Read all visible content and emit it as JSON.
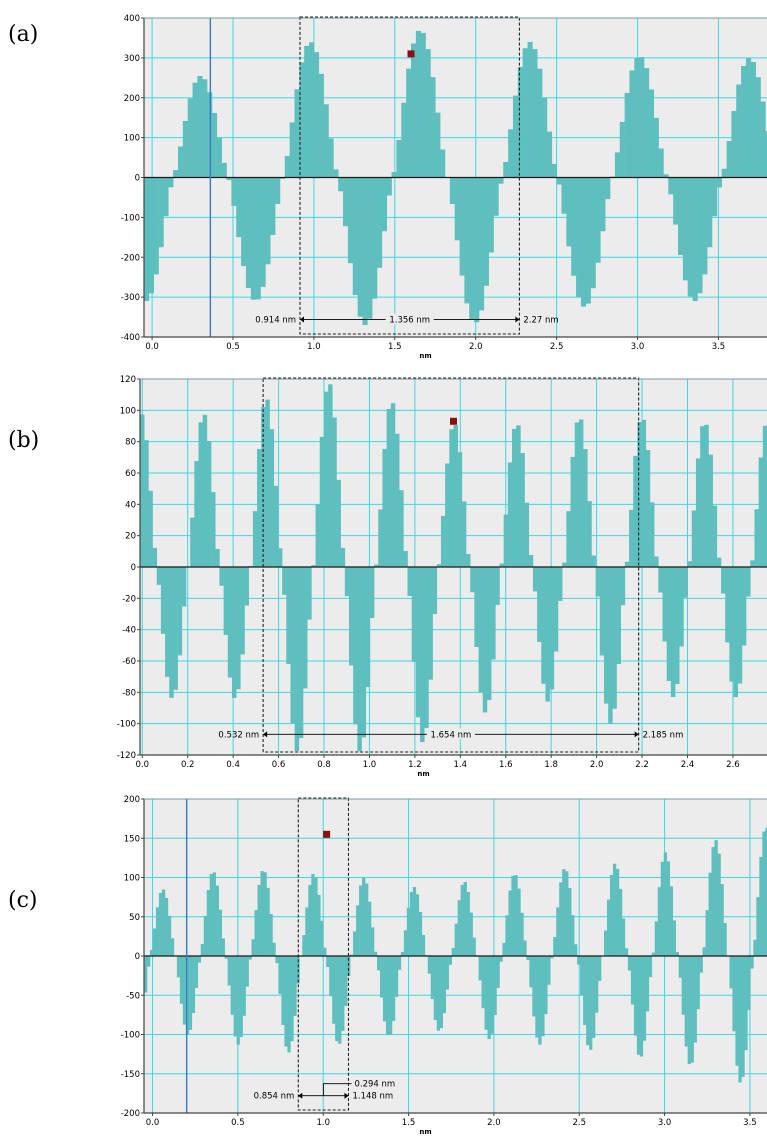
{
  "chart_data": [
    {
      "panel_label": "(a)",
      "type": "bar",
      "xlabel": "nm",
      "xlim": [
        -0.05,
        3.8
      ],
      "ylim": [
        -400,
        400
      ],
      "xticks": [
        "0.0",
        "0.5",
        "1.0",
        "1.5",
        "2.0",
        "2.5",
        "3.0",
        "3.5"
      ],
      "xtick_values": [
        0,
        0.5,
        1,
        1.5,
        2,
        2.5,
        3,
        3.5
      ],
      "yticks": [
        "400",
        "300",
        "200",
        "100",
        "0",
        "-100",
        "-200",
        "-300",
        "-400"
      ],
      "ytick_values": [
        400,
        300,
        200,
        100,
        0,
        -100,
        -200,
        -300,
        -400
      ],
      "grid": true,
      "wave": {
        "period": 0.678,
        "peak_x": 0.3,
        "ascending_zero_x": 0.13,
        "bin_width": 0.03,
        "peaks": [
          255,
          340,
          370,
          340,
          305,
          300,
          320
        ],
        "troughs": [
          -310,
          -370,
          -365,
          -325,
          -310
        ]
      },
      "cursor_x": 0.36,
      "marker": {
        "x": 1.6,
        "y": 310
      },
      "selection": [
        0.914,
        2.27
      ],
      "measurements": [
        "0.914 nm",
        "1.356 nm",
        "2.27 nm"
      ]
    },
    {
      "panel_label": "(b)",
      "type": "bar",
      "xlabel": "nm",
      "xlim": [
        -0.01,
        2.75
      ],
      "ylim": [
        -120,
        120
      ],
      "xticks": [
        "0.0",
        "0.2",
        "0.4",
        "0.6",
        "0.8",
        "1.0",
        "1.2",
        "1.4",
        "1.6",
        "1.8",
        "2.0",
        "2.2",
        "2.4",
        "2.6"
      ],
      "xtick_values": [
        0,
        0.2,
        0.4,
        0.6,
        0.8,
        1.0,
        1.2,
        1.4,
        1.6,
        1.8,
        2.0,
        2.2,
        2.4,
        2.6
      ],
      "yticks": [
        "120",
        "100",
        "80",
        "60",
        "40",
        "20",
        "0",
        "-20",
        "-40",
        "-60",
        "-80",
        "-100",
        "-120"
      ],
      "ytick_values": [
        120,
        100,
        80,
        60,
        40,
        20,
        0,
        -20,
        -40,
        -60,
        -80,
        -100,
        -120
      ],
      "grid": true,
      "wave": {
        "period": 0.2756,
        "peak_x": 0.27,
        "ascending_zero_x": 0.18,
        "bin_width": 0.0184,
        "peaks": [
          98,
          108,
          118,
          106,
          92,
          92,
          96,
          96,
          93
        ],
        "troughs": [
          -84,
          -118,
          -118,
          -112,
          -93,
          -86,
          -100,
          -83,
          -83
        ]
      },
      "marker": {
        "x": 1.37,
        "y": 93
      },
      "selection": [
        0.532,
        2.185
      ],
      "measurements": [
        "0.532 nm",
        "1.654 nm",
        "2.185 nm"
      ]
    },
    {
      "panel_label": "(c)",
      "type": "bar",
      "xlabel": "nm",
      "xlim": [
        -0.05,
        3.6
      ],
      "ylim": [
        -200,
        200
      ],
      "xticks": [
        "0.0",
        "0.5",
        "1.0",
        "1.5",
        "2.0",
        "2.5",
        "3.0",
        "3.5"
      ],
      "xtick_values": [
        0,
        0.5,
        1,
        1.5,
        2,
        2.5,
        3,
        3.5
      ],
      "yticks": [
        "200",
        "150",
        "100",
        "50",
        "0",
        "-50",
        "-100",
        "-150",
        "-200"
      ],
      "ytick_values": [
        200,
        150,
        100,
        50,
        0,
        -50,
        -100,
        -150,
        -200
      ],
      "grid": true,
      "wave": {
        "period": 0.2944,
        "peak_x": 0.06,
        "ascending_zero_x": -0.01,
        "bin_width": 0.0175,
        "peaks": [
          85,
          108,
          110,
          105,
          100,
          88,
          95,
          105,
          112,
          118,
          132,
          148,
          165,
          160,
          162,
          165,
          155
        ],
        "troughs": [
          -100,
          -113,
          -123,
          -113,
          -103,
          -96,
          -106,
          -113,
          -120,
          -130,
          -140,
          -162,
          -172,
          -172,
          -172,
          -172
        ]
      },
      "cursor_x": 0.2,
      "marker": {
        "x": 1.02,
        "y": 155
      },
      "selection": [
        0.854,
        1.148
      ],
      "measurements": [
        "0.294 nm",
        "0.854 nm",
        "1.148 nm"
      ]
    }
  ]
}
